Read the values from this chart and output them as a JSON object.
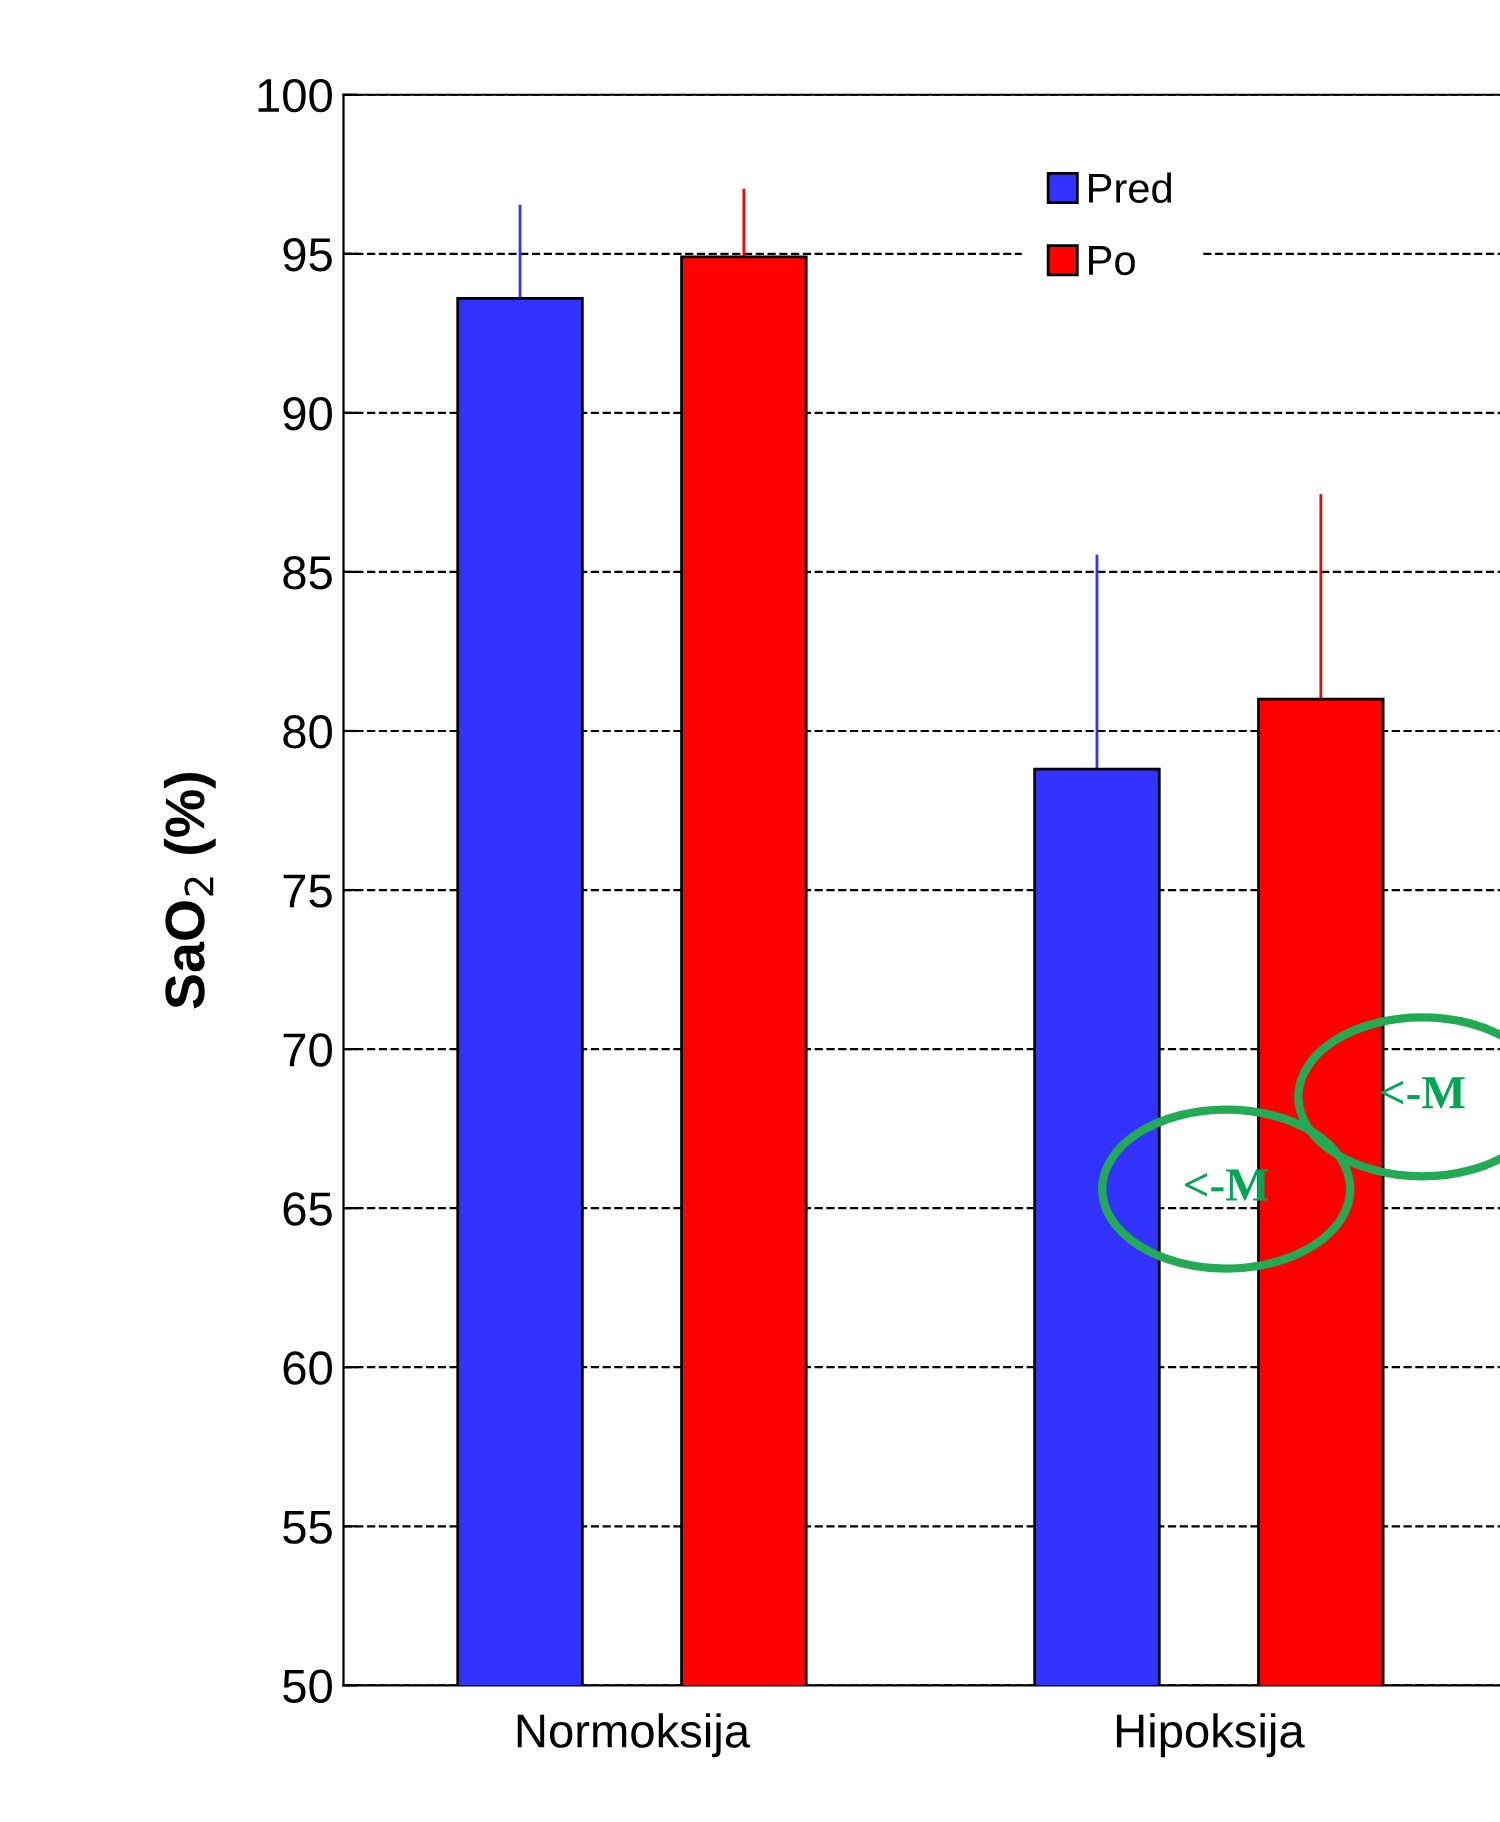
{
  "chart_data": {
    "type": "bar",
    "ylabel": "SaO$_{2}$ (%)",
    "categories": [
      "Normoksija",
      "Hipoksija"
    ],
    "series": [
      {
        "name": "Pred",
        "color": "#3333ff",
        "values": [
          93.6,
          78.8
        ],
        "errors": [
          [
            93.6,
            96.5
          ],
          [
            78.8,
            85.5
          ]
        ]
      },
      {
        "name": "Po",
        "color": "#ff0000",
        "values": [
          94.9,
          81.0
        ],
        "errors": [
          [
            94.9,
            97.0
          ],
          [
            81.0,
            87.4
          ]
        ]
      }
    ],
    "ylim": [
      50,
      100
    ],
    "yticks": [
      50,
      55,
      60,
      65,
      70,
      75,
      80,
      85,
      90,
      95,
      100
    ],
    "grid": "y",
    "legend": "top right",
    "annotations": [
      "<-M",
      "<-M"
    ]
  }
}
